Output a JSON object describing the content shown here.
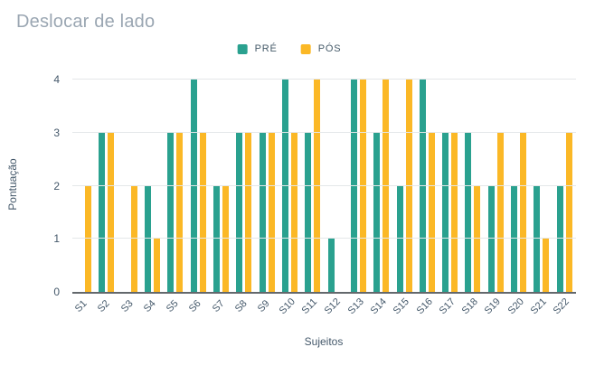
{
  "title": "Deslocar de lado",
  "colors": {
    "background": "#ffffff",
    "title_text": "#9aa6b2",
    "axis_text": "#44586a",
    "gridline": "#e4e7e9",
    "baseline": "#63686c",
    "series_pre": "#2aa18f",
    "series_pos": "#fbb826"
  },
  "chart_data": {
    "type": "bar",
    "title": "Deslocar de lado",
    "xlabel": "Sujeitos",
    "ylabel": "Pontuação",
    "ylim": [
      0,
      4
    ],
    "yticks": [
      0,
      1,
      2,
      3,
      4
    ],
    "grid": true,
    "legend_position": "top",
    "categories": [
      "S1",
      "S2",
      "S3",
      "S4",
      "S5",
      "S6",
      "S7",
      "S8",
      "S9",
      "S10",
      "S11",
      "S12",
      "S13",
      "S14",
      "S15",
      "S16",
      "S17",
      "S18",
      "S19",
      "S20",
      "S21",
      "S22"
    ],
    "series": [
      {
        "name": "PRÉ",
        "color": "#2aa18f",
        "values": [
          0,
          3,
          0,
          2,
          3,
          4,
          2,
          3,
          3,
          4,
          3,
          1,
          4,
          3,
          2,
          4,
          3,
          3,
          2,
          2,
          2,
          2
        ]
      },
      {
        "name": "PÓS",
        "color": "#fbb826",
        "values": [
          2,
          3,
          2,
          1,
          3,
          3,
          2,
          3,
          3,
          3,
          4,
          0,
          4,
          4,
          4,
          3,
          3,
          2,
          3,
          3,
          1,
          3
        ]
      }
    ]
  }
}
